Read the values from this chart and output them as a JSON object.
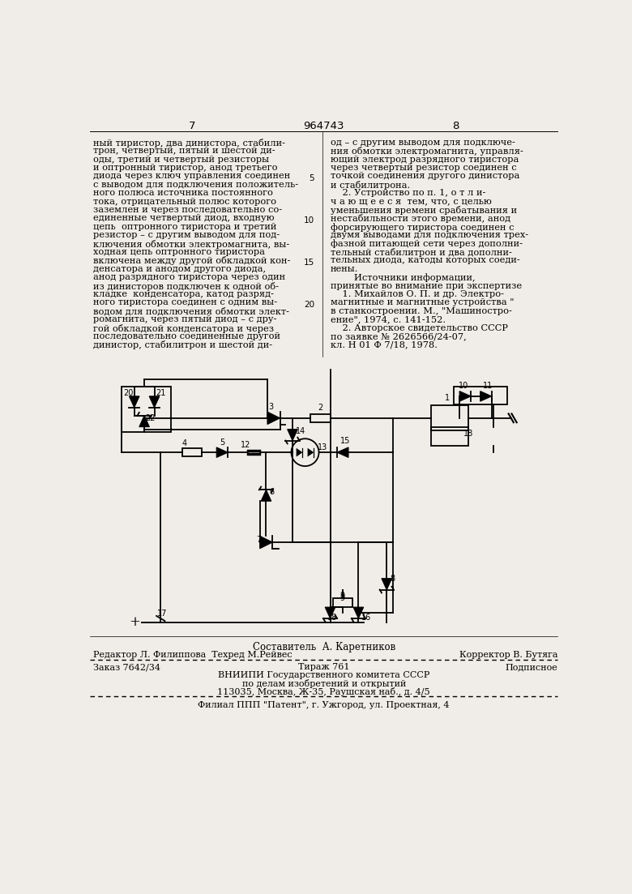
{
  "background_color": "#f0ede8",
  "page_width": 7.8,
  "page_height": 11.03,
  "top_header": {
    "left_num": "7",
    "center_num": "964743",
    "right_num": "8"
  },
  "left_col_lines": [
    "ный тиристор, два динистора, стабили-",
    "трон, четвертый, пятый и шестой ди-",
    "оды, третий и четвертый резисторы",
    "и оптронный тиристор, анод третьего",
    "диода через ключ управления соединен",
    "с выводом для подключения положитель-",
    "ного полюса источника постоянного",
    "тока, отрицательный полюс которого",
    "заземлен и через последовательно со-",
    "единенные четвертый диод, входную",
    "цепь  оптронного тиристора и третий",
    "резистор – с другим выводом для под-",
    "ключения обмотки электромагнита, вы-",
    "ходная цепь оптронного тиристора",
    "включена между другой обкладкой кон-",
    "денсатора и анодом другого диода,",
    "анод разрядного тиристора через один",
    "из динисторов подключен к одной об-",
    "кладке  конденсатора, катод разряд-",
    "ного тиристора соединен с одним вы-",
    "водом для подключения обмотки элект-",
    "ромагнита, через пятый диод – с дру-",
    "гой обкладкой конденсатора и через",
    "последовательно соединенные другой",
    "динистор, стабилитрон и шестой ди-"
  ],
  "right_col_lines": [
    "од – с другим выводом для подключе-",
    "ния обмотки электромагнита, управля-",
    "ющий электрод разрядного тиристора",
    "через четвертый резистор соединен с",
    "точкой соединения другого динистора",
    "и стабилитрона.",
    "    2. Устройство по п. 1, о т л и-",
    "ч а ю щ е е с я  тем, что, с целью",
    "уменьшения времени срабатывания и",
    "нестабильности этого времени, анод",
    "форсирующего тиристора соединен с",
    "двумя выводами для подключения трех-",
    "фазной питающей сети через дополни-",
    "тельный стабилитрон и два дополни-",
    "тельных диода, катоды которых соеди-",
    "нены.",
    "        Источники информации,",
    "принятые во внимание при экспертизе",
    "    1. Михайлов О. П. и др. Электро-",
    "магнитные и магнитные устройства \"",
    "в станкостроении. М., \"Машиностро-",
    "ение\", 1974, с. 141-152.",
    "    2. Авторское свидетельство СССР",
    "по заявке № 2626566/24-07,",
    "кл. Н 01 Ф 7/18, 1978."
  ],
  "line_nums": [
    [
      5,
      4
    ],
    [
      10,
      9
    ],
    [
      15,
      14
    ],
    [
      20,
      19
    ]
  ],
  "footer_composit": "Составитель  А. Каретников",
  "footer_editor": "Редактор Л. Филиппова  Техред М.Рейвес",
  "footer_corrector": "Корректор В. Бутяга",
  "footer_order": "Заказ 7642/34",
  "footer_tirazh": "Тираж 761",
  "footer_podp": "Подписное",
  "footer_vniip1": "ВНИИПИ Государственного комитета СССР",
  "footer_vniip2": "по делам изобретений и открытий",
  "footer_addr": "113035, Москва, Ж-35, Раушская наб., д. 4/5",
  "footer_filial": "Филиал ППП \"Патент\", г. Ужгород, ул. Проектная, 4"
}
